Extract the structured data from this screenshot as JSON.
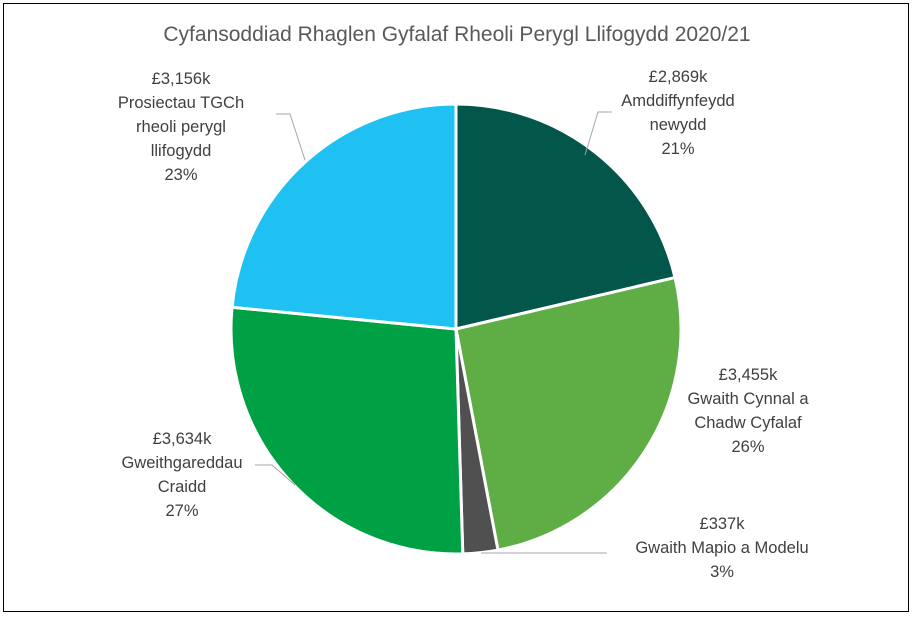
{
  "chart_data": {
    "type": "pie",
    "title": "Cyfansoddiad Rhaglen Gyfalaf Rheoli Perygl Llifogydd 2020/21",
    "slices": [
      {
        "name": "Amddiffynfeydd newydd",
        "value": 2869,
        "value_label": "£2,869k",
        "label_lines": [
          "Amddiffynfeydd",
          "newydd"
        ],
        "percent_label": "21%",
        "color": "#02574a"
      },
      {
        "name": "Gwaith Cynnal a Chadw Cyfalaf",
        "value": 3455,
        "value_label": "£3,455k",
        "label_lines": [
          "Gwaith Cynnal a",
          "Chadw Cyfalaf"
        ],
        "percent_label": "26%",
        "color": "#5fad45"
      },
      {
        "name": "Gwaith Mapio a Modelu",
        "value": 337,
        "value_label": "£337k",
        "label_lines": [
          "Gwaith Mapio a Modelu"
        ],
        "percent_label": "3%",
        "color": "#505050"
      },
      {
        "name": "Gweithgareddau Craidd",
        "value": 3634,
        "value_label": "£3,634k",
        "label_lines": [
          "Gweithgareddau",
          "Craidd"
        ],
        "percent_label": "27%",
        "color": "#00a045"
      },
      {
        "name": "Prosiectau TGCh rheoli perygl llifogydd",
        "value": 3156,
        "value_label": "£3,156k",
        "label_lines": [
          "Prosiectau TGCh",
          "rheoli perygl",
          "llifogydd"
        ],
        "percent_label": "23%",
        "color": "#1fc1f3"
      }
    ],
    "legend": "none"
  }
}
